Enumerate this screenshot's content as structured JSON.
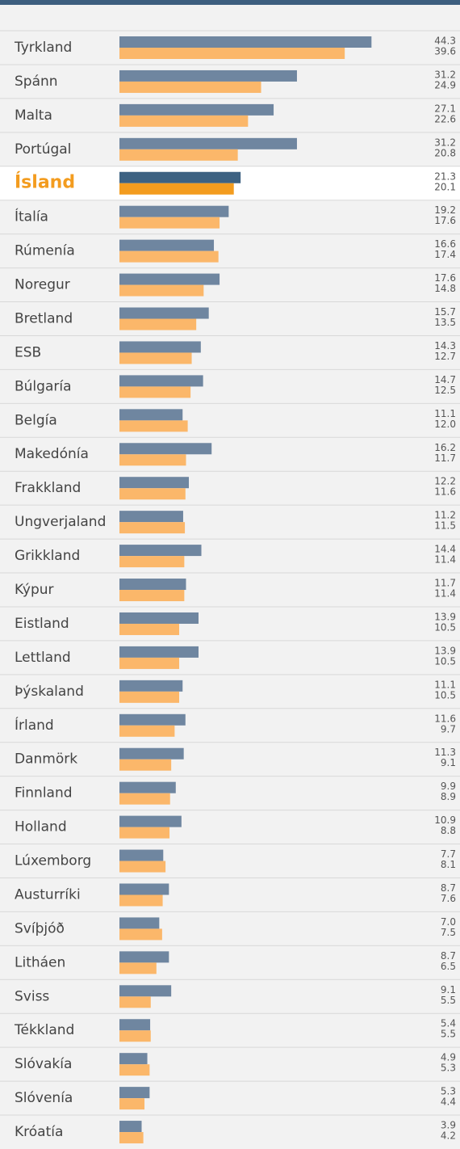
{
  "chart_data": {
    "type": "bar",
    "orientation": "horizontal",
    "highlight": 4,
    "categories": [
      "Tyrkland",
      "Spánn",
      "Malta",
      "Portúgal",
      "Ísland",
      "Ítalía",
      "Rúmenía",
      "Noregur",
      "Bretland",
      "ESB",
      "Búlgaría",
      "Belgía",
      "Makedónía",
      "Frakkland",
      "Ungverjaland",
      "Grikkland",
      "Kýpur",
      "Eistland",
      "Lettland",
      "Þýskaland",
      "Írland",
      "Danmörk",
      "Finnland",
      "Holland",
      "Lúxemborg",
      "Austurríki",
      "Svíþjóð",
      "Litháen",
      "Sviss",
      "Tékkland",
      "Slóvakía",
      "Slóvenía",
      "Króatía"
    ],
    "series": [
      {
        "color": "#6f86a0",
        "highlight_color": "#3d6282",
        "values": [
          44.3,
          31.2,
          27.1,
          31.2,
          21.3,
          19.2,
          16.6,
          17.6,
          15.7,
          14.3,
          14.7,
          11.1,
          16.2,
          12.2,
          11.2,
          14.4,
          11.7,
          13.9,
          13.9,
          11.1,
          11.6,
          11.3,
          9.9,
          10.9,
          7.7,
          8.7,
          7.0,
          8.7,
          9.1,
          5.4,
          4.9,
          5.3,
          3.9
        ],
        "value_labels": [
          "44.3",
          "31.2",
          "27.1",
          "31.2",
          "21.3",
          "19.2",
          "16.6",
          "17.6",
          "15.7",
          "14.3",
          "14.7",
          "11.1",
          "16.2",
          "12.2",
          "11.2",
          "14.4",
          "11.7",
          "13.9",
          "13.9",
          "11.1",
          "11.6",
          "11.3",
          "9.9",
          "10.9",
          "7.7",
          "8.7",
          "7.0",
          "8.7",
          "9.1",
          "5.4",
          "4.9",
          "5.3",
          "3.9"
        ]
      },
      {
        "color": "#fbb76a",
        "highlight_color": "#f39c1f",
        "values": [
          39.6,
          24.9,
          22.6,
          20.8,
          20.1,
          17.6,
          17.4,
          14.8,
          13.5,
          12.7,
          12.5,
          12.0,
          11.7,
          11.6,
          11.5,
          11.4,
          11.4,
          10.5,
          10.5,
          10.5,
          9.7,
          9.1,
          8.9,
          8.8,
          8.1,
          7.6,
          7.5,
          6.5,
          5.5,
          5.5,
          5.3,
          4.4,
          4.2
        ],
        "value_labels": [
          "39.6",
          "24.9",
          "22.6",
          "20.8",
          "20.1",
          "17.6",
          "17.4",
          "14.8",
          "13.5",
          "12.7",
          "12.5",
          "12.0",
          "11.7",
          "11.6",
          "11.5",
          "11.4",
          "11.4",
          "10.5",
          "10.5",
          "10.5",
          "9.7",
          "9.1",
          "8.9",
          "8.8",
          "8.1",
          "7.6",
          "7.5",
          "6.5",
          "5.5",
          "5.5",
          "5.3",
          "4.4",
          "4.2"
        ]
      }
    ]
  }
}
